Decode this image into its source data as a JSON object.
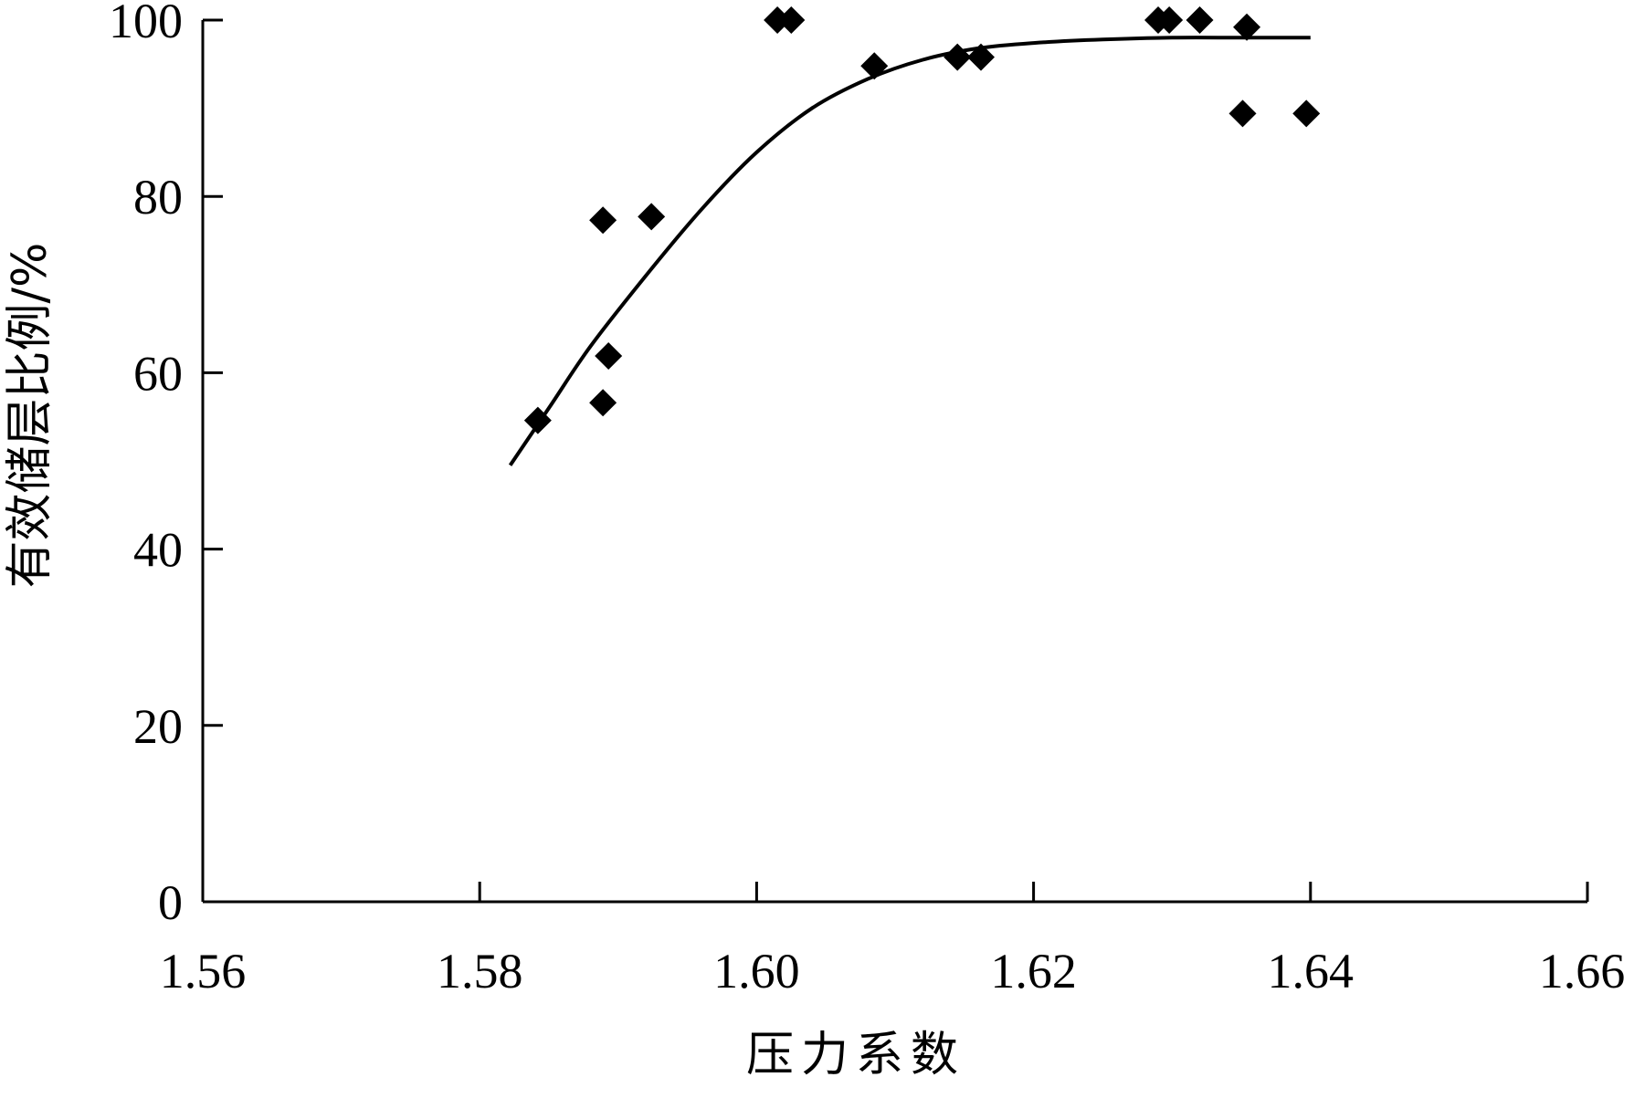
{
  "chart_data": {
    "type": "scatter",
    "xlabel": "压力系数",
    "ylabel": "有效储层比例/%",
    "xlim": [
      1.56,
      1.66
    ],
    "ylim": [
      0,
      100
    ],
    "xticks": [
      "1.56",
      "1.58",
      "1.60",
      "1.62",
      "1.64",
      "1.66"
    ],
    "yticks": [
      "0",
      "20",
      "40",
      "60",
      "80",
      "100"
    ],
    "grid": false,
    "legend": "none",
    "series": [
      {
        "type": "scatter",
        "marker": "diamond",
        "color": "#000000",
        "points": [
          {
            "x": 1.5842,
            "y": 54.6
          },
          {
            "x": 1.5889,
            "y": 56.6
          },
          {
            "x": 1.5893,
            "y": 61.9
          },
          {
            "x": 1.5889,
            "y": 77.3
          },
          {
            "x": 1.5924,
            "y": 77.7
          },
          {
            "x": 1.6015,
            "y": 100
          },
          {
            "x": 1.6025,
            "y": 100
          },
          {
            "x": 1.6085,
            "y": 94.8
          },
          {
            "x": 1.6145,
            "y": 95.8
          },
          {
            "x": 1.6162,
            "y": 95.8
          },
          {
            "x": 1.629,
            "y": 100
          },
          {
            "x": 1.6298,
            "y": 100
          },
          {
            "x": 1.632,
            "y": 100
          },
          {
            "x": 1.6354,
            "y": 99.2
          },
          {
            "x": 1.6351,
            "y": 89.4
          },
          {
            "x": 1.6397,
            "y": 89.4
          }
        ]
      },
      {
        "type": "line",
        "color": "#000000",
        "points": [
          {
            "x": 1.5822,
            "y": 49.5
          },
          {
            "x": 1.585,
            "y": 56.0
          },
          {
            "x": 1.588,
            "y": 63.0
          },
          {
            "x": 1.592,
            "y": 71.0
          },
          {
            "x": 1.596,
            "y": 78.5
          },
          {
            "x": 1.6,
            "y": 85.0
          },
          {
            "x": 1.604,
            "y": 90.0
          },
          {
            "x": 1.608,
            "y": 93.3
          },
          {
            "x": 1.612,
            "y": 95.5
          },
          {
            "x": 1.616,
            "y": 96.8
          },
          {
            "x": 1.62,
            "y": 97.4
          },
          {
            "x": 1.625,
            "y": 97.8
          },
          {
            "x": 1.63,
            "y": 98.0
          },
          {
            "x": 1.635,
            "y": 98.0
          },
          {
            "x": 1.64,
            "y": 98.0
          }
        ]
      }
    ]
  }
}
